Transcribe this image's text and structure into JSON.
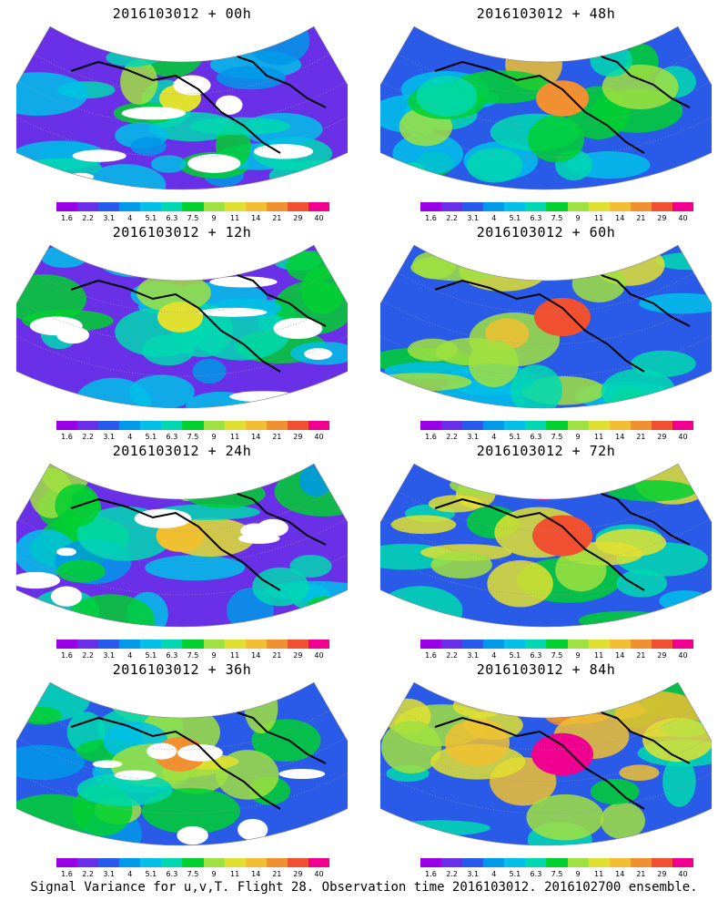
{
  "panels": [
    {
      "title": "2016103012 + 00h",
      "intensity": 0.25,
      "white_holes": true
    },
    {
      "title": "2016103012 + 48h",
      "intensity": 0.55,
      "white_holes": false
    },
    {
      "title": "2016103012 + 12h",
      "intensity": 0.35,
      "white_holes": true
    },
    {
      "title": "2016103012 + 60h",
      "intensity": 0.65,
      "white_holes": false
    },
    {
      "title": "2016103012 + 24h",
      "intensity": 0.42,
      "white_holes": true
    },
    {
      "title": "2016103012 + 72h",
      "intensity": 0.75,
      "white_holes": false
    },
    {
      "title": "2016103012 + 36h",
      "intensity": 0.5,
      "white_holes": true
    },
    {
      "title": "2016103012 + 84h",
      "intensity": 0.8,
      "white_holes": false
    }
  ],
  "colorbar": {
    "labels": [
      "1.6",
      "2.2",
      "3.1",
      "4",
      "5.1",
      "6.3",
      "7.5",
      "9",
      "11",
      "14",
      "21",
      "29",
      "40"
    ],
    "colors": [
      "#9a00e8",
      "#6a30e8",
      "#2a5ae8",
      "#0098e8",
      "#00c0e8",
      "#00d8b0",
      "#00d030",
      "#a0e040",
      "#e0e030",
      "#f0c030",
      "#f09030",
      "#f05030",
      "#f00090"
    ]
  },
  "caption": "Signal Variance for u,v,T. Flight 28. Observation time 2016103012. 2016102700 ensemble."
}
